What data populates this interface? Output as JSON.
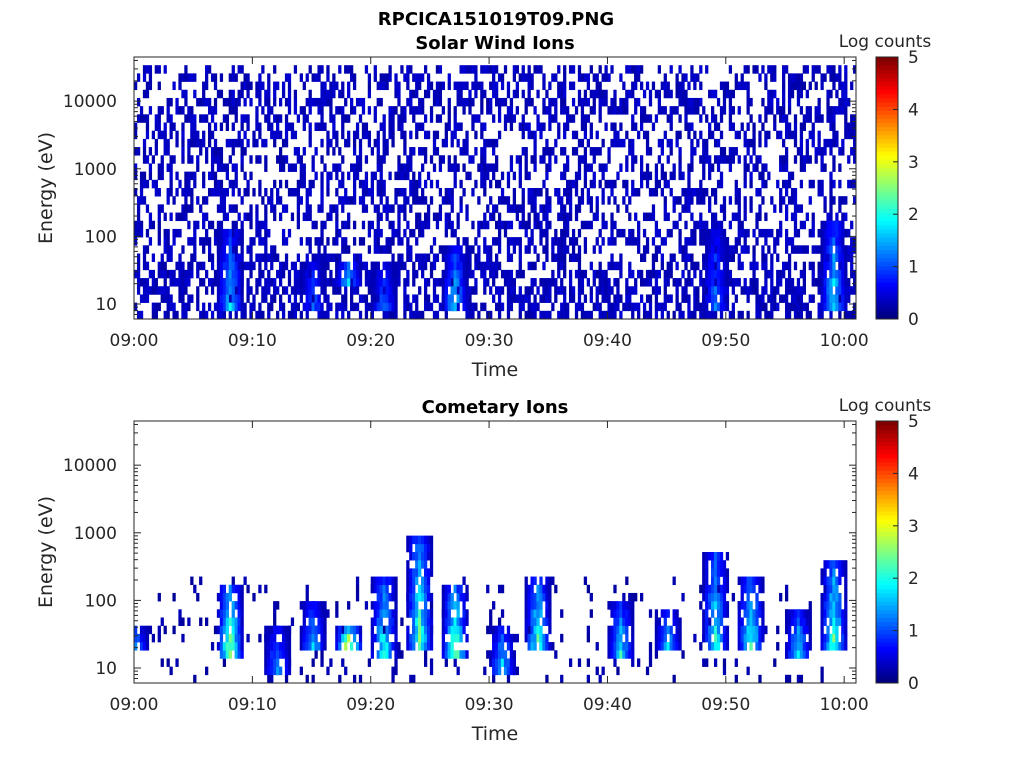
{
  "figure": {
    "title": "RPCICA151019T09.PNG"
  },
  "colors": {
    "colormap": "jet",
    "empty_background": "#ffffff",
    "axis": "#262626"
  },
  "chart_data": [
    {
      "type": "heatmap",
      "title": "Solar Wind Ions",
      "xlabel": "Time",
      "ylabel": "Energy (eV)",
      "x_ticks": [
        "09:00",
        "09:10",
        "09:20",
        "09:30",
        "09:40",
        "09:50",
        "10:00"
      ],
      "xlim": [
        "09:00",
        "10:01"
      ],
      "y_scale": "log",
      "y_ticks": [
        "10",
        "100",
        "1000",
        "10000"
      ],
      "ylim": [
        6,
        45000
      ],
      "colorbar": {
        "label": "Log counts",
        "range": [
          0,
          5
        ],
        "ticks": [
          "0",
          "1",
          "2",
          "3",
          "4",
          "5"
        ]
      },
      "background_noise": {
        "min_energy": 6,
        "max_energy": 30000,
        "typical_log_counts": 0.3,
        "density": "high"
      },
      "features": [
        {
          "time": "09:08",
          "e_low": 10,
          "e_high": 100,
          "peak_log_counts": 1.8
        },
        {
          "time": "09:15",
          "e_low": 10,
          "e_high": 40,
          "peak_log_counts": 1.2
        },
        {
          "time": "09:18",
          "e_low": 20,
          "e_high": 40,
          "peak_log_counts": 2.0
        },
        {
          "time": "09:21",
          "e_low": 10,
          "e_high": 40,
          "peak_log_counts": 1.2
        },
        {
          "time": "09:27",
          "e_low": 10,
          "e_high": 60,
          "peak_log_counts": 1.8
        },
        {
          "time": "09:49",
          "e_low": 10,
          "e_high": 120,
          "peak_log_counts": 1.3
        },
        {
          "time": "09:59",
          "e_low": 10,
          "e_high": 150,
          "peak_log_counts": 1.9
        }
      ]
    },
    {
      "type": "heatmap",
      "title": "Cometary Ions",
      "xlabel": "Time",
      "ylabel": "Energy (eV)",
      "x_ticks": [
        "09:00",
        "09:10",
        "09:20",
        "09:30",
        "09:40",
        "09:50",
        "10:00"
      ],
      "xlim": [
        "09:00",
        "10:01"
      ],
      "y_scale": "log",
      "y_ticks": [
        "10",
        "100",
        "1000",
        "10000"
      ],
      "ylim": [
        6,
        45000
      ],
      "colorbar": {
        "label": "Log counts",
        "range": [
          0,
          5
        ],
        "ticks": [
          "0",
          "1",
          "2",
          "3",
          "4",
          "5"
        ]
      },
      "background_noise": {
        "min_energy": 6,
        "max_energy": 200,
        "typical_log_counts": 0.2,
        "density": "medium"
      },
      "features": [
        {
          "time": "09:00",
          "e_low": 20,
          "e_high": 40,
          "peak_log_counts": 1.5
        },
        {
          "time": "09:08",
          "e_low": 15,
          "e_high": 150,
          "peak_log_counts": 2.8
        },
        {
          "time": "09:12",
          "e_low": 10,
          "e_high": 40,
          "peak_log_counts": 1.5
        },
        {
          "time": "09:15",
          "e_low": 20,
          "e_high": 80,
          "peak_log_counts": 1.8
        },
        {
          "time": "09:18",
          "e_low": 20,
          "e_high": 40,
          "peak_log_counts": 3.6
        },
        {
          "time": "09:21",
          "e_low": 15,
          "e_high": 200,
          "peak_log_counts": 2.3
        },
        {
          "time": "09:24",
          "e_low": 20,
          "e_high": 800,
          "peak_log_counts": 2.5
        },
        {
          "time": "09:27",
          "e_low": 15,
          "e_high": 150,
          "peak_log_counts": 2.7
        },
        {
          "time": "09:31",
          "e_low": 10,
          "e_high": 40,
          "peak_log_counts": 1.8
        },
        {
          "time": "09:34",
          "e_low": 20,
          "e_high": 200,
          "peak_log_counts": 2.3
        },
        {
          "time": "09:41",
          "e_low": 15,
          "e_high": 80,
          "peak_log_counts": 2.0
        },
        {
          "time": "09:45",
          "e_low": 20,
          "e_high": 60,
          "peak_log_counts": 1.8
        },
        {
          "time": "09:49",
          "e_low": 20,
          "e_high": 500,
          "peak_log_counts": 2.2
        },
        {
          "time": "09:52",
          "e_low": 20,
          "e_high": 200,
          "peak_log_counts": 2.4
        },
        {
          "time": "09:56",
          "e_low": 15,
          "e_high": 60,
          "peak_log_counts": 2.0
        },
        {
          "time": "09:59",
          "e_low": 20,
          "e_high": 400,
          "peak_log_counts": 2.4
        }
      ]
    }
  ]
}
